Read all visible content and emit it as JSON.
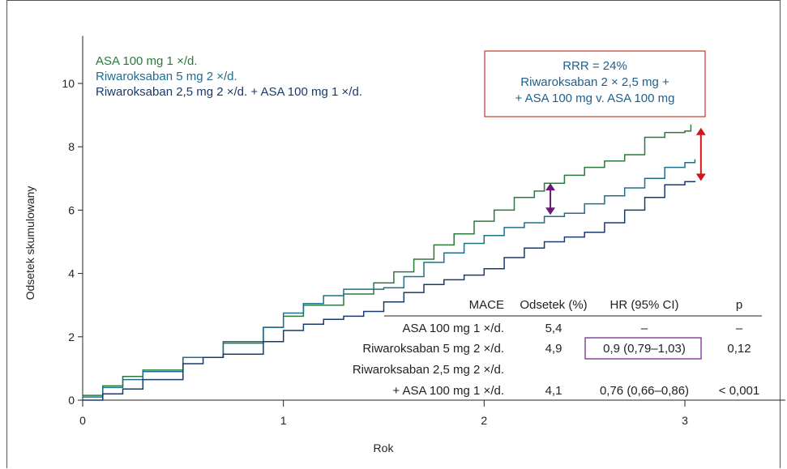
{
  "chart_data": {
    "type": "line",
    "xlabel": "Rok",
    "ylabel": "Odsetek skumulowany",
    "xlim": [
      0,
      3.5
    ],
    "ylim": [
      0,
      11.5
    ],
    "xticks": [
      "0",
      "1",
      "2",
      "3"
    ],
    "yticks": [
      "0",
      "2",
      "4",
      "6",
      "8",
      "10"
    ],
    "legend_position": "top-left",
    "series": [
      {
        "name": "ASA 100 mg 1 ×/d.",
        "color": "#2a7a3b",
        "points": [
          [
            0,
            0.15
          ],
          [
            0.1,
            0.45
          ],
          [
            0.2,
            0.75
          ],
          [
            0.3,
            0.95
          ],
          [
            0.5,
            1.35
          ],
          [
            0.7,
            1.8
          ],
          [
            0.9,
            2.3
          ],
          [
            1.0,
            2.65
          ],
          [
            1.1,
            3.0
          ],
          [
            1.3,
            3.35
          ],
          [
            1.45,
            3.7
          ],
          [
            1.55,
            4.05
          ],
          [
            1.65,
            4.45
          ],
          [
            1.75,
            4.9
          ],
          [
            1.85,
            5.25
          ],
          [
            1.95,
            5.65
          ],
          [
            2.05,
            6.0
          ],
          [
            2.15,
            6.4
          ],
          [
            2.25,
            6.6
          ],
          [
            2.3,
            6.85
          ],
          [
            2.4,
            7.1
          ],
          [
            2.5,
            7.35
          ],
          [
            2.6,
            7.55
          ],
          [
            2.7,
            7.75
          ],
          [
            2.8,
            8.3
          ],
          [
            2.9,
            8.45
          ],
          [
            3.0,
            8.5
          ],
          [
            3.03,
            8.7
          ]
        ]
      },
      {
        "name": "Riwaroksaban 5 mg 2 ×/d.",
        "color": "#1f6e8c",
        "points": [
          [
            0,
            0.1
          ],
          [
            0.1,
            0.4
          ],
          [
            0.2,
            0.65
          ],
          [
            0.3,
            0.9
          ],
          [
            0.5,
            1.35
          ],
          [
            0.7,
            1.85
          ],
          [
            0.9,
            2.3
          ],
          [
            1.0,
            2.75
          ],
          [
            1.1,
            3.05
          ],
          [
            1.2,
            3.3
          ],
          [
            1.3,
            3.5
          ],
          [
            1.5,
            3.55
          ],
          [
            1.6,
            3.9
          ],
          [
            1.7,
            4.35
          ],
          [
            1.8,
            4.65
          ],
          [
            1.9,
            4.95
          ],
          [
            2.0,
            5.2
          ],
          [
            2.1,
            5.45
          ],
          [
            2.2,
            5.6
          ],
          [
            2.3,
            5.8
          ],
          [
            2.4,
            5.9
          ],
          [
            2.5,
            6.2
          ],
          [
            2.6,
            6.45
          ],
          [
            2.7,
            6.7
          ],
          [
            2.8,
            7.0
          ],
          [
            2.9,
            7.35
          ],
          [
            3.0,
            7.5
          ],
          [
            3.05,
            7.6
          ]
        ]
      },
      {
        "name": "Riwaroksaban 2,5 mg 2 ×/d. + ASA 100 mg 1 ×/d.",
        "color": "#1a3a6b",
        "points": [
          [
            0,
            0.0
          ],
          [
            0.1,
            0.2
          ],
          [
            0.2,
            0.35
          ],
          [
            0.3,
            0.65
          ],
          [
            0.5,
            1.15
          ],
          [
            0.6,
            1.35
          ],
          [
            0.7,
            1.45
          ],
          [
            0.9,
            1.85
          ],
          [
            1.0,
            2.2
          ],
          [
            1.1,
            2.4
          ],
          [
            1.2,
            2.55
          ],
          [
            1.3,
            2.65
          ],
          [
            1.4,
            2.8
          ],
          [
            1.5,
            3.1
          ],
          [
            1.6,
            3.4
          ],
          [
            1.7,
            3.65
          ],
          [
            1.8,
            3.8
          ],
          [
            1.9,
            3.95
          ],
          [
            2.0,
            4.15
          ],
          [
            2.1,
            4.5
          ],
          [
            2.2,
            4.8
          ],
          [
            2.3,
            5.0
          ],
          [
            2.4,
            5.15
          ],
          [
            2.5,
            5.3
          ],
          [
            2.6,
            5.6
          ],
          [
            2.7,
            6.0
          ],
          [
            2.8,
            6.4
          ],
          [
            2.9,
            6.8
          ],
          [
            3.0,
            6.9
          ],
          [
            3.05,
            6.92
          ]
        ]
      }
    ],
    "legend": [
      {
        "label": "ASA 100 mg 1 ×/d.",
        "color": "#2a7a3b"
      },
      {
        "label": "Riwaroksaban 5 mg 2 ×/d.",
        "color": "#1f6e8c"
      },
      {
        "label": "Riwaroksaban 2,5 mg 2 ×/d. + ASA 100 mg 1 ×/d.",
        "color": "#1a3a6b"
      }
    ],
    "annotation_box": {
      "lines": [
        "RRR = 24%",
        "Riwaroksaban 2 × 2,5 mg +",
        "+ ASA 100 mg v. ASA 100 mg"
      ],
      "color": "#1f5f8b",
      "border_color": "#c0392b"
    },
    "arrows": [
      {
        "name": "purple-arrow",
        "x": 2.33,
        "y_from": 5.85,
        "y_to": 6.85,
        "color": "#6a1b7a"
      },
      {
        "name": "red-arrow",
        "x": 3.08,
        "y_from": 6.92,
        "y_to": 8.6,
        "color": "#d0161e"
      }
    ],
    "table": {
      "headers": [
        "MACE",
        "Odsetek (%)",
        "HR (95% CI)",
        "p"
      ],
      "rows": [
        [
          "ASA 100 mg 1 ×/d.",
          "5,4",
          "–",
          "–"
        ],
        [
          "Riwaroksaban 5 mg 2 ×/d.",
          "4,9",
          "0,9 (0,79–1,03)",
          "0,12"
        ],
        [
          "Riwaroksaban 2,5 mg 2 ×/d.",
          "",
          "",
          ""
        ],
        [
          "+ ASA 100 mg 1 ×/d.",
          "4,1",
          "0,76 (0,66–0,86)",
          "< 0,001"
        ]
      ],
      "highlight_color": "#7b2d8e"
    }
  }
}
